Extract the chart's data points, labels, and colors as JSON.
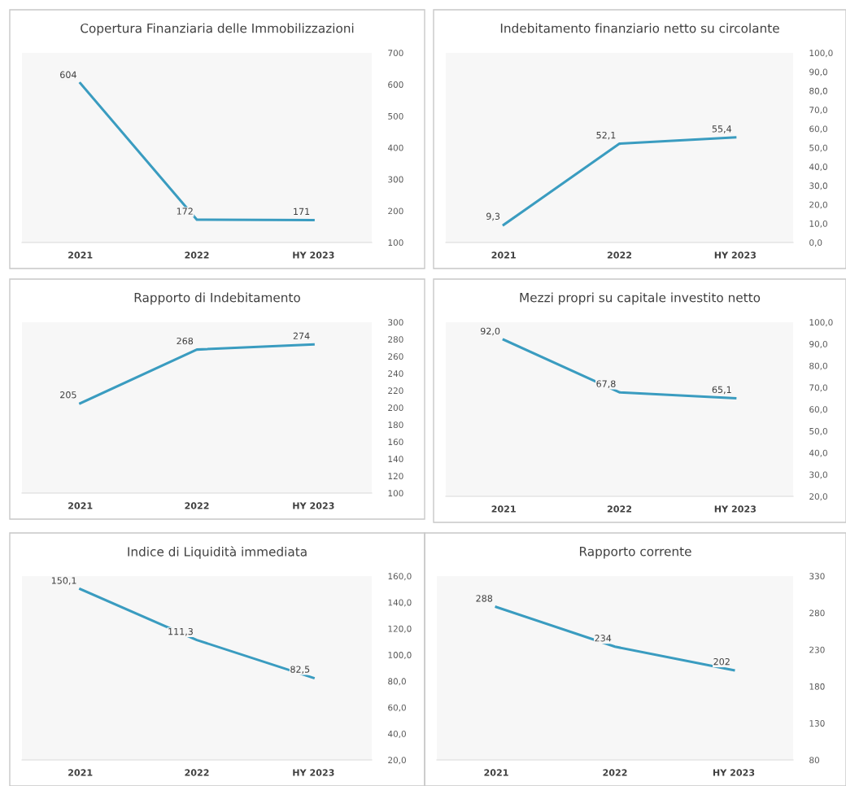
{
  "chart_data": [
    {
      "type": "line",
      "title": "Copertura Finanziaria delle Immobilizzazioni",
      "categories": [
        "2021",
        "2022",
        "HY 2023"
      ],
      "series": [
        {
          "color": "#3a9cc0",
          "values": [
            604,
            172,
            171
          ],
          "value_labels": [
            "604",
            "172",
            "171"
          ]
        }
      ],
      "ylim": [
        100,
        700
      ],
      "yticks": [
        100,
        200,
        300,
        400,
        500,
        600,
        700
      ],
      "grid": false,
      "legend": false,
      "marker": "none",
      "line_style": "solid"
    },
    {
      "type": "line",
      "title": "Indebitamento finanziario netto su circolante",
      "categories": [
        "2021",
        "2022",
        "HY 2023"
      ],
      "series": [
        {
          "color": "#3a9cc0",
          "values": [
            9.3,
            52.1,
            55.4
          ],
          "value_labels": [
            "9,3",
            "52,1",
            "55,4"
          ]
        }
      ],
      "ylim": [
        0,
        100
      ],
      "yticks": [
        {
          "value": 0,
          "label": "0,0"
        },
        {
          "value": 10,
          "label": "10,0"
        },
        {
          "value": 20,
          "label": "20,0"
        },
        {
          "value": 30,
          "label": "30,0"
        },
        {
          "value": 40,
          "label": "40,0"
        },
        {
          "value": 50,
          "label": "50,0"
        },
        {
          "value": 60,
          "label": "60,0"
        },
        {
          "value": 70,
          "label": "70,0"
        },
        {
          "value": 80,
          "label": "80,0"
        },
        {
          "value": 90,
          "label": "90,0"
        },
        {
          "value": 100,
          "label": "100,0"
        }
      ],
      "grid": false,
      "legend": false,
      "marker": "none",
      "line_style": "solid"
    },
    {
      "type": "line",
      "title": "Rapporto di Indebitamento",
      "categories": [
        "2021",
        "2022",
        "HY 2023"
      ],
      "series": [
        {
          "color": "#3a9cc0",
          "values": [
            205,
            268,
            274
          ],
          "value_labels": [
            "205",
            "268",
            "274"
          ]
        }
      ],
      "ylim": [
        100,
        300
      ],
      "yticks": [
        100,
        120,
        140,
        160,
        180,
        200,
        220,
        240,
        260,
        280,
        300
      ],
      "grid": false,
      "legend": false,
      "marker": "none",
      "line_style": "solid"
    },
    {
      "type": "line",
      "title": "Mezzi propri su capitale investito netto",
      "categories": [
        "2021",
        "2022",
        "HY 2023"
      ],
      "series": [
        {
          "color": "#3a9cc0",
          "values": [
            92.0,
            67.8,
            65.1
          ],
          "value_labels": [
            "92,0",
            "67,8",
            "65,1"
          ]
        }
      ],
      "ylim": [
        20,
        100
      ],
      "yticks": [
        {
          "value": 20,
          "label": "20,0"
        },
        {
          "value": 30,
          "label": "30,0"
        },
        {
          "value": 40,
          "label": "40,0"
        },
        {
          "value": 50,
          "label": "50,0"
        },
        {
          "value": 60,
          "label": "60,0"
        },
        {
          "value": 70,
          "label": "70,0"
        },
        {
          "value": 80,
          "label": "80,0"
        },
        {
          "value": 90,
          "label": "90,0"
        },
        {
          "value": 100,
          "label": "100,0"
        }
      ],
      "grid": false,
      "legend": false,
      "marker": "none",
      "line_style": "solid"
    },
    {
      "type": "line",
      "title": "Indice di Liquidità immediata",
      "categories": [
        "2021",
        "2022",
        "HY 2023"
      ],
      "series": [
        {
          "color": "#3a9cc0",
          "values": [
            150.1,
            111.3,
            82.5
          ],
          "value_labels": [
            "150,1",
            "111,3",
            "82,5"
          ]
        }
      ],
      "ylim": [
        20,
        160
      ],
      "yticks": [
        {
          "value": 20,
          "label": "20,0"
        },
        {
          "value": 40,
          "label": "40,0"
        },
        {
          "value": 60,
          "label": "60,0"
        },
        {
          "value": 80,
          "label": "80,0"
        },
        {
          "value": 100,
          "label": "100,0"
        },
        {
          "value": 120,
          "label": "120,0"
        },
        {
          "value": 140,
          "label": "140,0"
        },
        {
          "value": 160,
          "label": "160,0"
        }
      ],
      "grid": false,
      "legend": false,
      "marker": "none",
      "line_style": "solid"
    },
    {
      "type": "line",
      "title": "Rapporto corrente",
      "categories": [
        "2021",
        "2022",
        "HY 2023"
      ],
      "series": [
        {
          "color": "#3a9cc0",
          "values": [
            288,
            234,
            202
          ],
          "value_labels": [
            "288",
            "234",
            "202"
          ]
        }
      ],
      "ylim": [
        80,
        330
      ],
      "yticks": [
        80,
        130,
        180,
        230,
        280,
        330
      ],
      "grid": false,
      "legend": false,
      "marker": "none",
      "line_style": "solid"
    }
  ]
}
